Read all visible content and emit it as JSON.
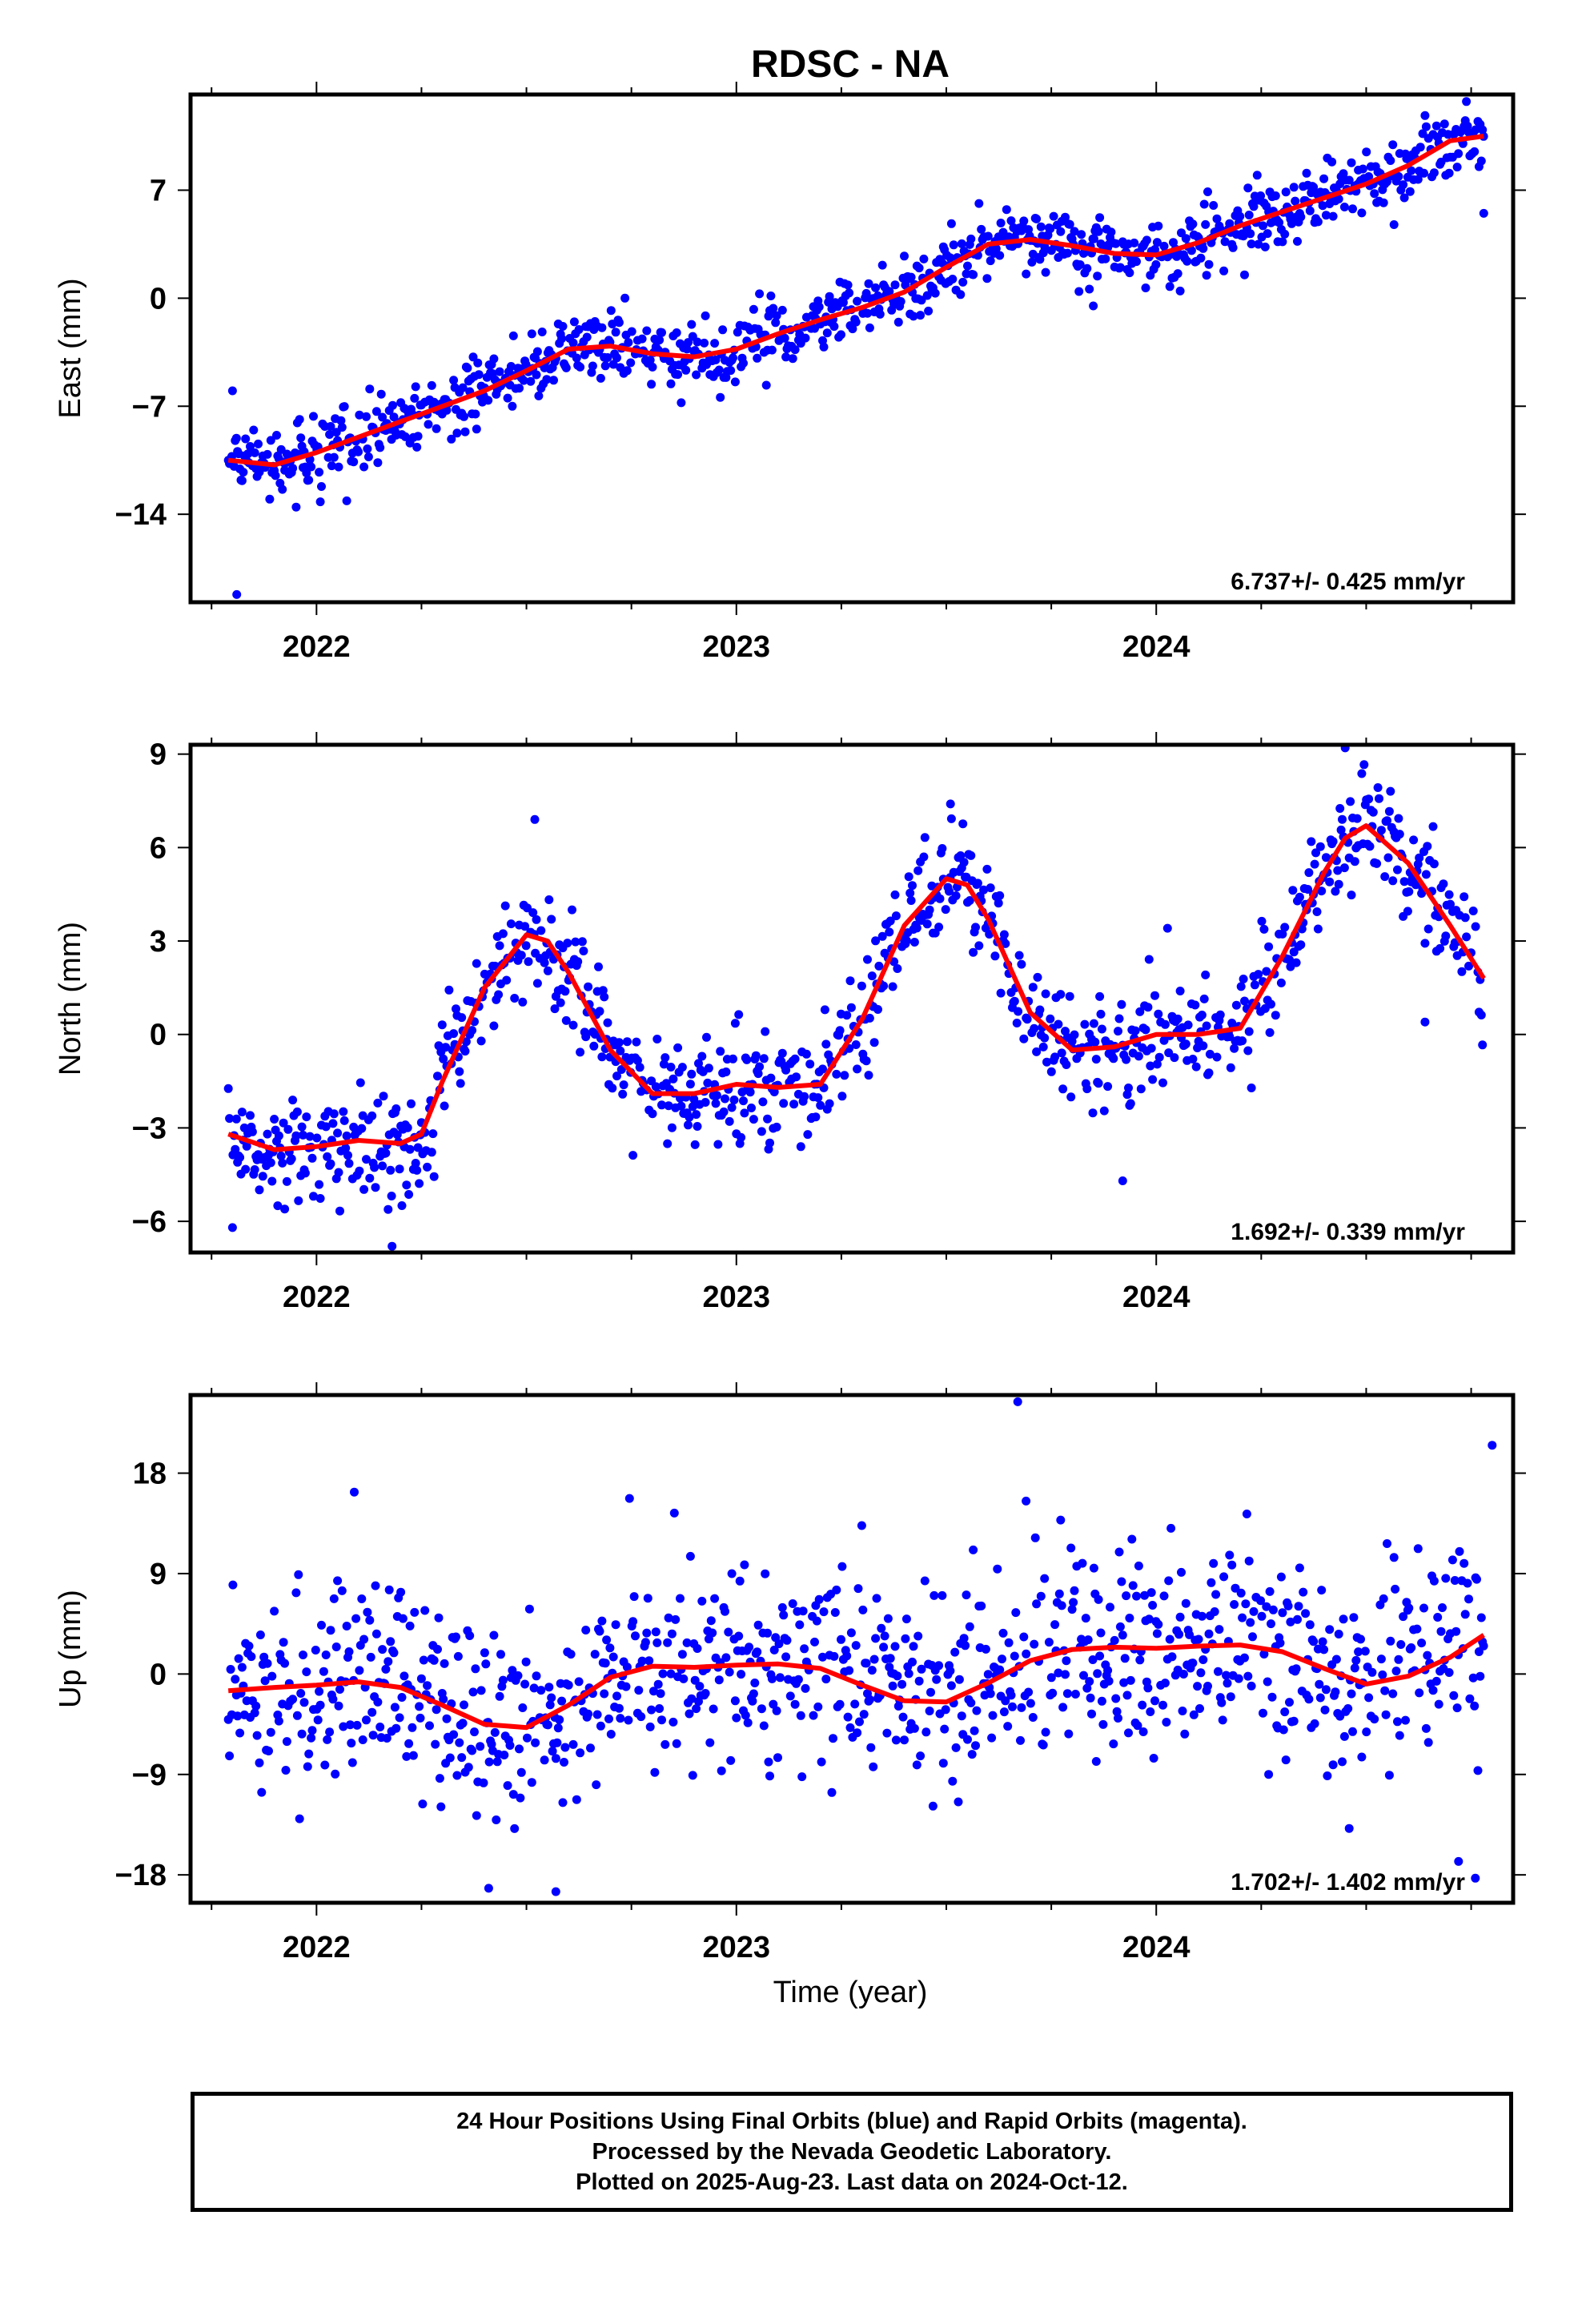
{
  "title": "RDSC - NA",
  "xlabel": "Time (year)",
  "x_tick_labels": [
    "2022",
    "2023",
    "2024"
  ],
  "colors": {
    "final_orbits": "#0000ff",
    "fit": "#ff0000",
    "axis": "#000000"
  },
  "caption": [
    "24 Hour Positions Using Final Orbits (blue) and Rapid Orbits (magenta).",
    "Processed by the Nevada Geodetic Laboratory.",
    "Plotted on 2025-Aug-23. Last data on 2024-Oct-12."
  ],
  "chart_data": [
    {
      "type": "scatter",
      "component": "east",
      "ylabel": "East (mm)",
      "xlim": [
        2021.7,
        2024.85
      ],
      "ylim": [
        -19.7,
        13.2
      ],
      "yticks": [
        -14,
        -7,
        0,
        7
      ],
      "xticks": [
        2022,
        2023,
        2024
      ],
      "rate_label": "6.737+/- 0.425 mm/yr",
      "trend": {
        "start": [
          2021.79,
          -10.5
        ],
        "rate": 6.737
      },
      "seasonal": {
        "annual_sin": 1.2,
        "annual_cos": -0.3,
        "semi_sin": 0.6,
        "semi_cos": 0.2
      },
      "scatter_sigma": 1.1,
      "outliers": [
        [
          2021.81,
          -19.2
        ],
        [
          2021.8,
          -6.0
        ],
        [
          2023.85,
          -0.5
        ],
        [
          2024.78,
          5.5
        ]
      ],
      "fit_line": {
        "x": [
          2021.79,
          2021.9,
          2022.0,
          2022.1,
          2022.2,
          2022.3,
          2022.4,
          2022.5,
          2022.6,
          2022.7,
          2022.8,
          2022.9,
          2023.0,
          2023.1,
          2023.2,
          2023.3,
          2023.4,
          2023.5,
          2023.6,
          2023.7,
          2023.8,
          2023.9,
          2024.0,
          2024.1,
          2024.2,
          2024.3,
          2024.4,
          2024.5,
          2024.6,
          2024.7,
          2024.78
        ],
        "y": [
          -10.5,
          -10.8,
          -10.0,
          -9.0,
          -8.0,
          -7.0,
          -6.0,
          -4.7,
          -3.3,
          -3.1,
          -3.6,
          -3.8,
          -3.3,
          -2.3,
          -1.4,
          -0.6,
          0.4,
          2.0,
          3.5,
          3.8,
          3.4,
          2.9,
          2.8,
          3.6,
          4.7,
          5.6,
          6.5,
          7.4,
          8.6,
          10.2,
          10.5
        ]
      }
    },
    {
      "type": "scatter",
      "component": "north",
      "ylabel": "North (mm)",
      "xlim": [
        2021.7,
        2024.85
      ],
      "ylim": [
        -7.0,
        9.3
      ],
      "yticks": [
        -6,
        -3,
        0,
        3,
        6,
        9
      ],
      "xticks": [
        2022,
        2023,
        2024
      ],
      "rate_label": "1.692+/- 0.339 mm/yr",
      "trend": {
        "start": [
          2021.79,
          -3.2
        ],
        "rate": 1.692
      },
      "seasonal": {
        "annual_sin": 0.2,
        "annual_cos": -3.1,
        "semi_sin": 0.5,
        "semi_cos": 0.4
      },
      "scatter_sigma": 0.9,
      "outliers": [
        [
          2021.8,
          -6.2
        ],
        [
          2022.52,
          6.9
        ],
        [
          2022.18,
          -6.8
        ],
        [
          2023.51,
          7.4
        ],
        [
          2023.92,
          -4.7
        ],
        [
          2024.45,
          9.2
        ],
        [
          2024.64,
          0.4
        ]
      ],
      "fit_line": {
        "x": [
          2021.79,
          2021.9,
          2022.0,
          2022.1,
          2022.2,
          2022.25,
          2022.3,
          2022.4,
          2022.5,
          2022.55,
          2022.6,
          2022.7,
          2022.8,
          2022.9,
          2023.0,
          2023.1,
          2023.2,
          2023.3,
          2023.4,
          2023.5,
          2023.55,
          2023.6,
          2023.7,
          2023.8,
          2023.9,
          2024.0,
          2024.1,
          2024.2,
          2024.3,
          2024.4,
          2024.45,
          2024.5,
          2024.6,
          2024.7,
          2024.78
        ],
        "y": [
          -3.2,
          -3.7,
          -3.6,
          -3.4,
          -3.5,
          -3.2,
          -1.5,
          1.5,
          3.2,
          3.0,
          2.0,
          -0.5,
          -1.9,
          -1.9,
          -1.6,
          -1.7,
          -1.6,
          0.5,
          3.5,
          5.0,
          4.8,
          3.7,
          0.7,
          -0.5,
          -0.4,
          0.0,
          0.0,
          0.2,
          2.5,
          5.2,
          6.3,
          6.7,
          5.5,
          3.5,
          1.8
        ]
      }
    },
    {
      "type": "scatter",
      "component": "up",
      "ylabel": "Up (mm)",
      "xlim": [
        2021.7,
        2024.85
      ],
      "ylim": [
        -20.5,
        25.0
      ],
      "yticks": [
        -18,
        -9,
        0,
        9,
        18
      ],
      "xticks": [
        2022,
        2023,
        2024
      ],
      "rate_label": "1.702+/- 1.402 mm/yr",
      "trend": {
        "start": [
          2021.79,
          -1.5
        ],
        "rate": 1.702
      },
      "seasonal": {
        "annual_sin": 1.0,
        "annual_cos": 0.5,
        "semi_sin": 0.3,
        "semi_cos": -0.2
      },
      "scatter_sigma": 4.5,
      "outliers": [
        [
          2022.09,
          16.3
        ],
        [
          2023.67,
          24.4
        ],
        [
          2023.69,
          15.5
        ],
        [
          2022.57,
          -19.5
        ],
        [
          2022.41,
          -19.2
        ],
        [
          2024.8,
          20.5
        ],
        [
          2024.76,
          -18.3
        ],
        [
          2024.72,
          -16.8
        ]
      ],
      "fit_line": {
        "x": [
          2021.79,
          2021.9,
          2022.0,
          2022.1,
          2022.2,
          2022.3,
          2022.4,
          2022.5,
          2022.6,
          2022.7,
          2022.8,
          2022.9,
          2023.0,
          2023.1,
          2023.2,
          2023.3,
          2023.4,
          2023.5,
          2023.6,
          2023.7,
          2023.8,
          2023.9,
          2024.0,
          2024.1,
          2024.2,
          2024.3,
          2024.4,
          2024.5,
          2024.6,
          2024.7,
          2024.78
        ],
        "y": [
          -1.5,
          -1.2,
          -1.0,
          -0.7,
          -1.2,
          -2.8,
          -4.5,
          -4.8,
          -2.8,
          -0.3,
          0.7,
          0.6,
          0.8,
          0.9,
          0.5,
          -1.0,
          -2.4,
          -2.5,
          -0.8,
          1.2,
          2.2,
          2.4,
          2.3,
          2.5,
          2.6,
          2.0,
          0.5,
          -0.9,
          -0.2,
          1.5,
          3.5
        ]
      }
    }
  ]
}
